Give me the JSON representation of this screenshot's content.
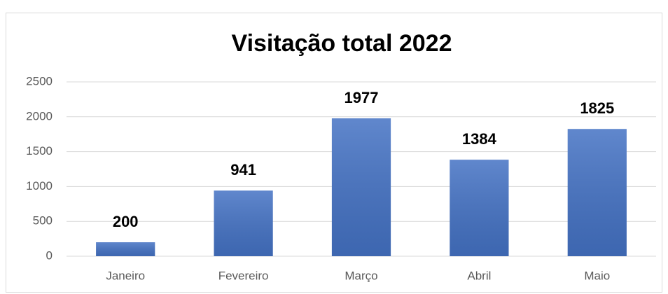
{
  "chart_data": {
    "type": "bar",
    "title": "Visitação total 2022",
    "categories": [
      "Janeiro",
      "Fevereiro",
      "Março",
      "Abril",
      "Maio"
    ],
    "values": [
      200,
      941,
      1977,
      1384,
      1825
    ],
    "color": "#4472c4",
    "ylim": [
      0,
      2500
    ],
    "yticks": [
      0,
      500,
      1000,
      1500,
      2000,
      2500
    ],
    "grid": true,
    "data_labels": true
  }
}
